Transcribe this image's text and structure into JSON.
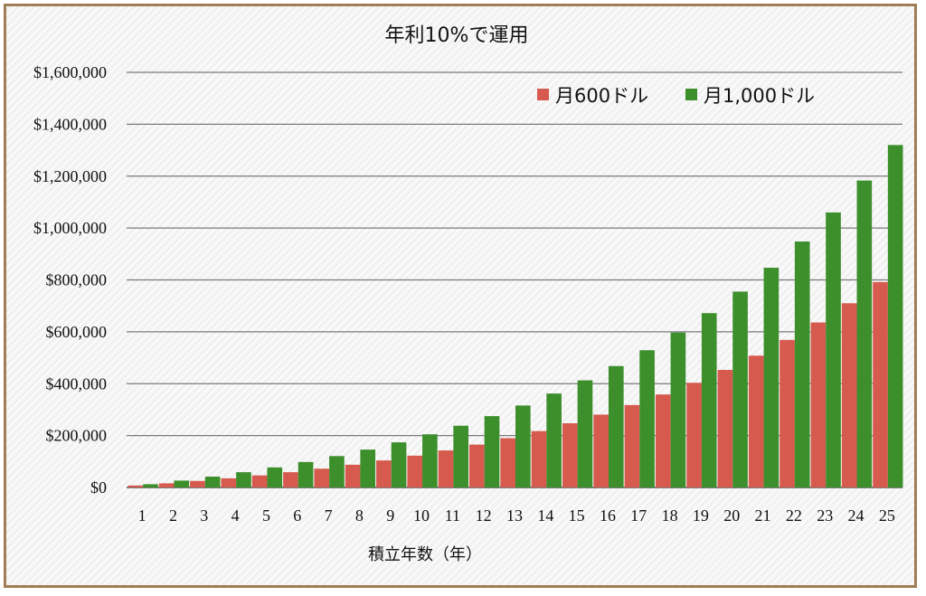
{
  "chart_data": {
    "type": "bar",
    "title": "年利10%で運用",
    "xlabel": "積立年数（年）",
    "ylabel": "",
    "ylim": [
      0,
      1600000
    ],
    "yticks": [
      "$0",
      "$200,000",
      "$400,000",
      "$600,000",
      "$800,000",
      "$1,000,000",
      "$1,200,000",
      "$1,400,000",
      "$1,600,000"
    ],
    "categories": [
      "1",
      "2",
      "3",
      "4",
      "5",
      "6",
      "7",
      "8",
      "9",
      "10",
      "11",
      "12",
      "13",
      "14",
      "15",
      "16",
      "17",
      "18",
      "19",
      "20",
      "21",
      "22",
      "23",
      "24",
      "25"
    ],
    "series": [
      {
        "name": "月600ドル",
        "color": "#d65a4e",
        "values": [
          7600,
          15900,
          25200,
          35300,
          46500,
          58900,
          72500,
          87600,
          104200,
          122600,
          142800,
          165200,
          190000,
          217300,
          247500,
          280800,
          317700,
          358500,
          403500,
          453200,
          508100,
          568800,
          635900,
          710000,
          791900
        ]
      },
      {
        "name": "月1,000ドル",
        "color": "#3d8f2c",
        "values": [
          12600,
          26500,
          41900,
          58900,
          77400,
          98200,
          121000,
          146000,
          174000,
          205000,
          238000,
          275000,
          316000,
          362000,
          413000,
          468000,
          529000,
          597000,
          672000,
          755000,
          847000,
          948000,
          1060000,
          1183000,
          1320000
        ]
      }
    ],
    "grid": true,
    "legend_position": "top-right"
  }
}
